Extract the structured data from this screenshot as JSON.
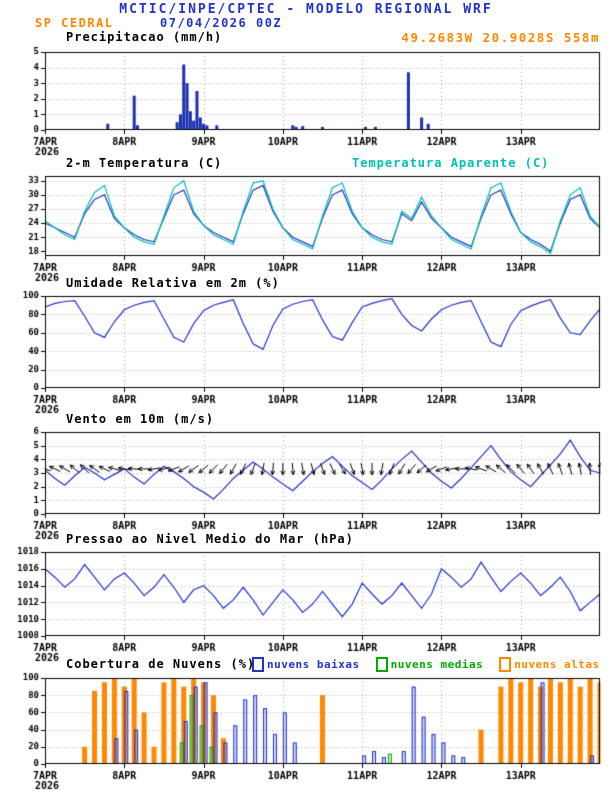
{
  "header": {
    "title": "MCTIC/INPE/CPTEC - MODELO REGIONAL WRF",
    "station": "SP CEDRAL",
    "datetime": "07/04/2026 00Z"
  },
  "colors": {
    "blue": "#2233cc",
    "cyan": "#00c0b0",
    "orange": "#ff8800",
    "green": "#00aa00",
    "grid": "#aaaaaa",
    "frame": "#000000",
    "text": "#000000"
  },
  "x_axis": {
    "ticks": [
      "7APR",
      "8APR",
      "9APR",
      "10APR",
      "11APR",
      "12APR",
      "13APR"
    ],
    "tick_hours": [
      0,
      24,
      48,
      72,
      96,
      120,
      144
    ],
    "year": "2026",
    "hours_total": 168
  },
  "chart_data": [
    {
      "id": "precip",
      "type": "bar",
      "title": "Precipitacao (mm/h)",
      "annotation": "49.2683W 20.9028S 558m",
      "ylim": [
        0,
        5
      ],
      "y_ticks": [
        0,
        1,
        2,
        3,
        4,
        5
      ],
      "color": "#1b2fb0",
      "points_hour_value": [
        [
          19,
          0.4
        ],
        [
          27,
          2.2
        ],
        [
          28,
          0.3
        ],
        [
          40,
          0.5
        ],
        [
          41,
          1.0
        ],
        [
          42,
          4.2
        ],
        [
          43,
          3.0
        ],
        [
          44,
          1.2
        ],
        [
          45,
          0.6
        ],
        [
          46,
          2.5
        ],
        [
          47,
          0.8
        ],
        [
          48,
          0.4
        ],
        [
          49,
          0.3
        ],
        [
          52,
          0.3
        ],
        [
          75,
          0.3
        ],
        [
          76,
          0.2
        ],
        [
          78,
          0.25
        ],
        [
          84,
          0.2
        ],
        [
          97,
          0.2
        ],
        [
          100,
          0.2
        ],
        [
          110,
          3.7
        ],
        [
          114,
          0.8
        ],
        [
          116,
          0.4
        ]
      ]
    },
    {
      "id": "temp",
      "type": "line",
      "title": "2-m Temperatura (C)",
      "title2": "Temperatura Aparente (C)",
      "ylim": [
        17,
        34
      ],
      "y_ticks": [
        18,
        21,
        24,
        27,
        30,
        33
      ],
      "step_hours": 3,
      "series": [
        {
          "name": "2-m Temperatura (C)",
          "color": "#2233cc",
          "values": [
            24,
            23,
            22,
            21,
            26,
            29,
            30,
            25,
            23,
            21.5,
            20.5,
            20,
            25,
            30,
            31,
            26,
            23.5,
            22,
            21,
            20,
            26,
            31,
            32,
            26.5,
            23,
            21,
            20,
            19,
            25,
            30,
            31,
            26,
            23,
            21.5,
            20.5,
            20,
            26,
            24.5,
            28.5,
            25,
            23,
            21,
            20,
            19,
            25,
            30,
            31,
            26,
            22,
            20.5,
            19.5,
            18,
            24,
            29,
            30,
            25,
            23
          ]
        },
        {
          "name": "Temperatura Aparente (C)",
          "color": "#00c0b0",
          "values": [
            24.5,
            23,
            21.5,
            20.5,
            26.5,
            30.5,
            32,
            25.5,
            23,
            21,
            20,
            19.5,
            25.5,
            31.5,
            33,
            26.5,
            23.5,
            21.5,
            20.5,
            19.5,
            26.5,
            32.5,
            33,
            27,
            23,
            20.5,
            19.5,
            18.5,
            25.5,
            31.5,
            32.5,
            26.5,
            23,
            21,
            20,
            19.5,
            26.5,
            25,
            29.5,
            25.5,
            23,
            20.5,
            19.5,
            18.5,
            25.5,
            31.5,
            32.5,
            26.5,
            22,
            20,
            19,
            17.5,
            24.5,
            30,
            31.5,
            25.5,
            23
          ]
        }
      ]
    },
    {
      "id": "rh",
      "type": "line",
      "title": "Umidade Relativa em 2m (%)",
      "ylim": [
        0,
        100
      ],
      "y_ticks": [
        0,
        20,
        40,
        60,
        80,
        100
      ],
      "step_hours": 3,
      "series": [
        {
          "name": "Umidade Relativa",
          "color": "#2233cc",
          "values": [
            88,
            92,
            94,
            95,
            78,
            60,
            55,
            72,
            85,
            90,
            93,
            95,
            75,
            55,
            50,
            70,
            84,
            90,
            93,
            96,
            70,
            48,
            42,
            68,
            86,
            91,
            94,
            96,
            74,
            56,
            52,
            71,
            88,
            92,
            95,
            97,
            80,
            68,
            62,
            75,
            85,
            90,
            93,
            95,
            72,
            50,
            45,
            69,
            84,
            89,
            93,
            96,
            76,
            60,
            58,
            73,
            86
          ]
        }
      ]
    },
    {
      "id": "wind",
      "type": "line",
      "title": "Vento em 10m (m/s)",
      "ylim": [
        0,
        6
      ],
      "y_ticks": [
        0,
        1,
        2,
        3,
        4,
        5,
        6
      ],
      "step_hours": 3,
      "series": [
        {
          "name": "Vento em 10m",
          "color": "#2233cc",
          "values": [
            3.2,
            2.6,
            2.1,
            2.8,
            3.4,
            3.0,
            2.5,
            2.9,
            3.3,
            2.7,
            2.2,
            2.9,
            3.5,
            3.1,
            2.6,
            2.0,
            1.6,
            1.1,
            1.8,
            2.6,
            3.2,
            3.8,
            3.3,
            2.7,
            2.2,
            1.7,
            2.4,
            3.1,
            3.7,
            4.2,
            3.5,
            2.8,
            2.3,
            1.8,
            2.5,
            3.3,
            4.0,
            4.6,
            3.8,
            3.0,
            2.4,
            1.9,
            2.6,
            3.4,
            4.2,
            5.0,
            4.0,
            3.1,
            2.5,
            2.0,
            2.8,
            3.6,
            4.4,
            5.4,
            4.2,
            3.2,
            3.0
          ]
        }
      ],
      "arrows": {
        "y": 3.3,
        "color": "#000000",
        "directions": [
          200,
          205,
          210,
          220,
          225,
          215,
          205,
          195,
          190,
          185,
          180,
          170,
          165,
          160,
          150,
          145,
          140,
          135,
          130,
          120,
          115,
          110,
          100,
          95,
          90,
          85,
          80,
          75,
          70,
          65,
          60,
          70,
          80,
          90,
          100,
          110,
          120,
          130,
          140,
          150,
          160,
          170,
          180,
          190,
          200,
          210,
          220,
          225,
          230,
          235,
          240,
          245,
          250,
          255,
          260,
          265,
          270
        ]
      }
    },
    {
      "id": "pres",
      "type": "line",
      "title": "Pressao ao Nivel Medio do Mar (hPa)",
      "ylim": [
        1008,
        1018
      ],
      "y_ticks": [
        1008,
        1010,
        1012,
        1014,
        1016,
        1018
      ],
      "step_hours": 3,
      "series": [
        {
          "name": "Pressao",
          "color": "#2233cc",
          "values": [
            1016,
            1015,
            1013.8,
            1014.8,
            1016.5,
            1015,
            1013.5,
            1014.8,
            1015.5,
            1014.3,
            1012.8,
            1013.8,
            1015.3,
            1013.8,
            1012,
            1013.5,
            1014,
            1012.8,
            1011.3,
            1012.3,
            1013.8,
            1012.3,
            1010.5,
            1012,
            1013.5,
            1012.3,
            1010.8,
            1011.8,
            1013.3,
            1011.8,
            1010.3,
            1011.8,
            1014.3,
            1013,
            1011.8,
            1012.8,
            1014.3,
            1012.8,
            1011.3,
            1013,
            1016,
            1015,
            1013.8,
            1014.8,
            1016.8,
            1015,
            1013.3,
            1014.5,
            1015.5,
            1014.3,
            1012.8,
            1013.8,
            1015,
            1013.3,
            1011,
            1012,
            1013
          ]
        }
      ]
    },
    {
      "id": "clouds",
      "type": "bar-multi",
      "title": "Cobertura de Nuvens (%)",
      "ylim": [
        0,
        100
      ],
      "y_ticks": [
        0,
        20,
        40,
        60,
        80,
        100
      ],
      "step_hours": 3,
      "legend": [
        {
          "label": "nuvens baixas",
          "color": "#2233cc"
        },
        {
          "label": "nuvens medias",
          "color": "#00aa00"
        },
        {
          "label": "nuvens altas",
          "color": "#ff8800"
        }
      ],
      "series": [
        {
          "name": "nuvens altas",
          "color": "#ff8800",
          "fill": true,
          "values": [
            0,
            0,
            0,
            0,
            20,
            85,
            95,
            100,
            90,
            100,
            60,
            20,
            95,
            100,
            90,
            100,
            95,
            80,
            30,
            0,
            0,
            0,
            0,
            0,
            0,
            0,
            0,
            0,
            80,
            0,
            0,
            0,
            0,
            0,
            0,
            0,
            0,
            0,
            0,
            0,
            0,
            0,
            0,
            0,
            40,
            0,
            90,
            100,
            95,
            100,
            90,
            100,
            95,
            100,
            90,
            100,
            95
          ]
        },
        {
          "name": "nuvens medias",
          "color": "#00aa00",
          "fill": false,
          "values": [
            0,
            0,
            0,
            0,
            0,
            0,
            0,
            0,
            0,
            0,
            0,
            0,
            0,
            0,
            25,
            80,
            45,
            20,
            0,
            0,
            0,
            0,
            0,
            0,
            0,
            0,
            0,
            0,
            0,
            0,
            0,
            0,
            0,
            0,
            0,
            12,
            0,
            0,
            0,
            0,
            0,
            0,
            0,
            0,
            0,
            0,
            0,
            0,
            0,
            0,
            0,
            0,
            0,
            0,
            0,
            0,
            0
          ]
        },
        {
          "name": "nuvens baixas",
          "color": "#2233cc",
          "fill": false,
          "values": [
            0,
            0,
            0,
            0,
            0,
            0,
            0,
            30,
            85,
            40,
            0,
            0,
            0,
            0,
            50,
            90,
            95,
            60,
            25,
            45,
            75,
            80,
            65,
            35,
            60,
            25,
            0,
            0,
            0,
            0,
            0,
            0,
            10,
            15,
            8,
            0,
            15,
            90,
            55,
            35,
            25,
            10,
            8,
            0,
            0,
            0,
            0,
            0,
            0,
            0,
            95,
            0,
            0,
            0,
            0,
            10,
            0
          ]
        }
      ]
    }
  ]
}
